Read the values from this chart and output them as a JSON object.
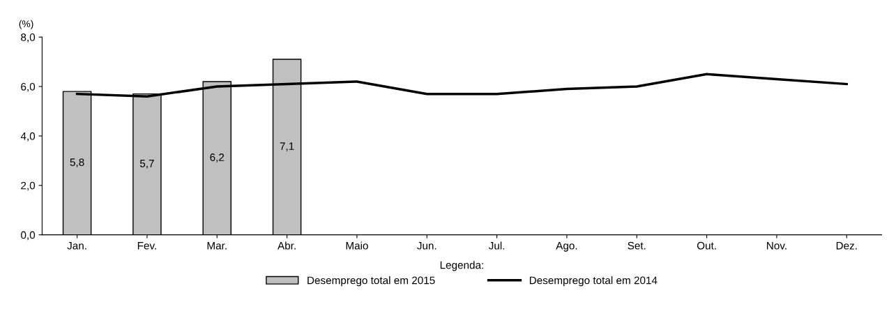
{
  "chart_data": {
    "type": "bar",
    "ylabel": "(%)",
    "legend_title": "Legenda:",
    "categories": [
      "Jan.",
      "Fev.",
      "Mar.",
      "Abr.",
      "Maio",
      "Jun.",
      "Jul.",
      "Ago.",
      "Set.",
      "Out.",
      "Nov.",
      "Dez."
    ],
    "series": [
      {
        "name": "Desemprego total em 2015",
        "color": "#c0c0c0",
        "values": [
          5.8,
          5.7,
          6.2,
          7.1,
          null,
          null,
          null,
          null,
          null,
          null,
          null,
          null
        ],
        "value_labels": [
          "5,8",
          "5,7",
          "6,2",
          "7,1",
          null,
          null,
          null,
          null,
          null,
          null,
          null,
          null
        ]
      },
      {
        "name": "Desemprego total em 2014",
        "type": "line",
        "color": "#000000",
        "values": [
          5.7,
          5.6,
          6.0,
          6.1,
          6.2,
          5.7,
          5.7,
          5.9,
          6.0,
          6.5,
          6.3,
          6.1
        ]
      }
    ],
    "ylim": [
      0,
      8
    ],
    "yticks": [
      {
        "value": 0,
        "label": "0,0"
      },
      {
        "value": 2,
        "label": "2,0"
      },
      {
        "value": 4,
        "label": "4,0"
      },
      {
        "value": 6,
        "label": "6,0"
      },
      {
        "value": 8,
        "label": "8,0"
      }
    ],
    "grid": false,
    "legend": "bottom",
    "marker": "none",
    "line_style": "solid"
  }
}
